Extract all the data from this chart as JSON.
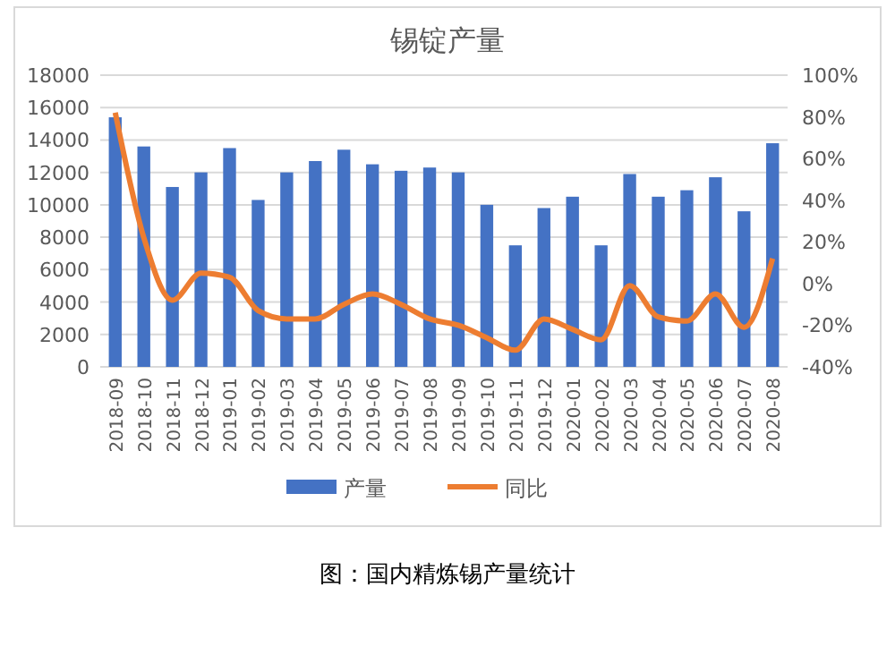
{
  "chart_data": {
    "type": "bar",
    "title": "锡锭产量",
    "categories": [
      "2018-09",
      "2018-10",
      "2018-11",
      "2018-12",
      "2019-01",
      "2019-02",
      "2019-03",
      "2019-04",
      "2019-05",
      "2019-06",
      "2019-07",
      "2019-08",
      "2019-09",
      "2019-10",
      "2019-11",
      "2019-12",
      "2020-01",
      "2020-02",
      "2020-03",
      "2020-04",
      "2020-05",
      "2020-06",
      "2020-07",
      "2020-08"
    ],
    "series": [
      {
        "name": "产量",
        "color": "#4472c4",
        "values": [
          15400,
          13600,
          11100,
          12000,
          13500,
          10300,
          12000,
          12700,
          13400,
          12500,
          12100,
          12300,
          12000,
          10000,
          7500,
          9800,
          10500,
          7500,
          11900,
          10500,
          10900,
          11700,
          9600,
          13800
        ]
      },
      {
        "name": "同比",
        "type": "line",
        "axis": "y2",
        "color": "#ed7d31",
        "values": [
          82,
          22,
          -8,
          5,
          3,
          -13,
          -17,
          -17,
          -10,
          -5,
          -10,
          -17,
          -20,
          -26,
          -32,
          -17,
          -22,
          -27,
          -1,
          -16,
          -18,
          -5,
          -21,
          12
        ]
      }
    ],
    "ylim": [
      0,
      18000
    ],
    "yticks": [
      0,
      2000,
      4000,
      6000,
      8000,
      10000,
      12000,
      14000,
      16000,
      18000
    ],
    "y2lim": [
      -40,
      100
    ],
    "y2ticks": [
      {
        "value": -40,
        "label": "-40%"
      },
      {
        "value": -20,
        "label": "-20%"
      },
      {
        "value": 0,
        "label": "0%"
      },
      {
        "value": 20,
        "label": "20%"
      },
      {
        "value": 40,
        "label": "40%"
      },
      {
        "value": 60,
        "label": "60%"
      },
      {
        "value": 80,
        "label": "80%"
      },
      {
        "value": 100,
        "label": "100%"
      }
    ],
    "grid": "y",
    "legend": "bottom",
    "marker": "none",
    "line_style": "solid",
    "annotations": [
      "图：国内精炼锡产量统计"
    ]
  }
}
